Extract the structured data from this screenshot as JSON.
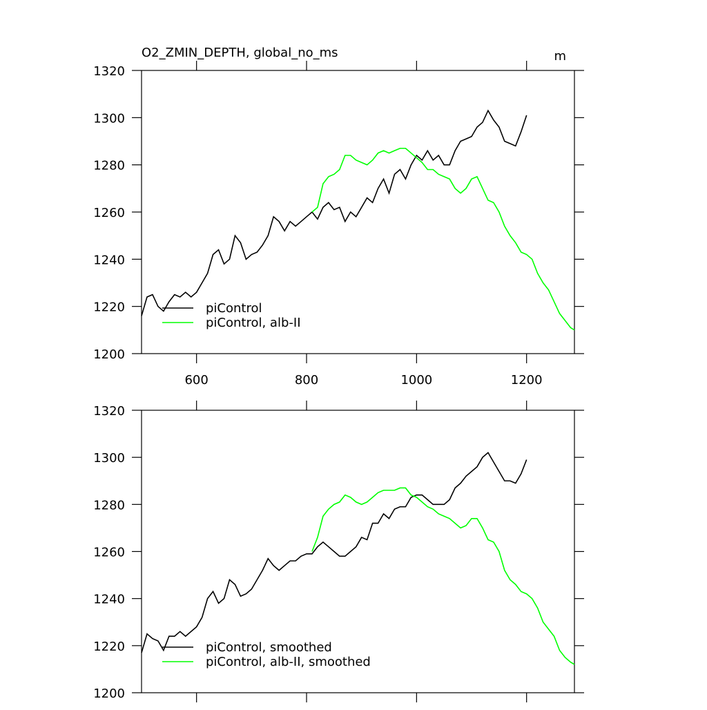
{
  "chart_data": [
    {
      "type": "line",
      "title": "O2_ZMIN_DEPTH, global_no_ms",
      "unit": "m",
      "xlim": [
        500,
        1287
      ],
      "xticks": [
        600,
        800,
        1000,
        1200
      ],
      "ylim": [
        1200,
        1320
      ],
      "yticks": [
        1200,
        1220,
        1240,
        1260,
        1280,
        1300,
        1320
      ],
      "legend": "lower left",
      "series": [
        {
          "name": "piControl",
          "color": "#000000",
          "x": [
            500,
            510,
            520,
            530,
            540,
            550,
            560,
            570,
            580,
            590,
            600,
            610,
            620,
            630,
            640,
            650,
            660,
            670,
            680,
            690,
            700,
            710,
            720,
            730,
            740,
            750,
            760,
            770,
            780,
            790,
            800,
            810,
            820,
            830,
            840,
            850,
            860,
            870,
            880,
            890,
            900,
            910,
            920,
            930,
            940,
            950,
            960,
            970,
            980,
            990,
            1000,
            1010,
            1020,
            1030,
            1040,
            1050,
            1060,
            1070,
            1080,
            1090,
            1100,
            1110,
            1120,
            1130,
            1140,
            1150,
            1160,
            1170,
            1180,
            1190,
            1200
          ],
          "values": [
            1216,
            1224,
            1225,
            1220,
            1218,
            1222,
            1225,
            1224,
            1226,
            1224,
            1226,
            1230,
            1234,
            1242,
            1244,
            1238,
            1240,
            1250,
            1247,
            1240,
            1242,
            1243,
            1246,
            1250,
            1258,
            1256,
            1252,
            1256,
            1254,
            1256,
            1258,
            1260,
            1257,
            1262,
            1264,
            1261,
            1262,
            1256,
            1260,
            1258,
            1262,
            1266,
            1264,
            1270,
            1274,
            1268,
            1276,
            1278,
            1274,
            1280,
            1284,
            1282,
            1286,
            1282,
            1284,
            1280,
            1280,
            1286,
            1290,
            1291,
            1292,
            1296,
            1298,
            1303,
            1299,
            1296,
            1290,
            1289,
            1288,
            1294,
            1301
          ]
        },
        {
          "name": "piControl, alb-II",
          "color": "#00ff00",
          "x": [
            810,
            820,
            830,
            840,
            850,
            860,
            870,
            880,
            890,
            900,
            910,
            920,
            930,
            940,
            950,
            960,
            970,
            980,
            990,
            1000,
            1010,
            1020,
            1030,
            1040,
            1050,
            1060,
            1070,
            1080,
            1090,
            1100,
            1110,
            1120,
            1130,
            1140,
            1150,
            1160,
            1170,
            1180,
            1190,
            1200,
            1210,
            1220,
            1230,
            1240,
            1250,
            1260,
            1270,
            1280,
            1287
          ],
          "values": [
            1260,
            1262,
            1272,
            1275,
            1276,
            1278,
            1284,
            1284,
            1282,
            1281,
            1280,
            1282,
            1285,
            1286,
            1285,
            1286,
            1287,
            1287,
            1285,
            1283,
            1281,
            1278,
            1278,
            1276,
            1275,
            1274,
            1270,
            1268,
            1270,
            1274,
            1275,
            1270,
            1265,
            1264,
            1260,
            1254,
            1250,
            1247,
            1243,
            1242,
            1240,
            1234,
            1230,
            1227,
            1222,
            1217,
            1214,
            1211,
            1210
          ]
        }
      ]
    },
    {
      "type": "line",
      "xlim": [
        500,
        1287
      ],
      "xticks": [
        600,
        800,
        1000,
        1200
      ],
      "ylim": [
        1200,
        1320
      ],
      "yticks": [
        1200,
        1220,
        1240,
        1260,
        1280,
        1300,
        1320
      ],
      "legend": "lower left",
      "series": [
        {
          "name": "piControl, smoothed",
          "color": "#000000",
          "x": [
            500,
            510,
            520,
            530,
            540,
            550,
            560,
            570,
            580,
            590,
            600,
            610,
            620,
            630,
            640,
            650,
            660,
            670,
            680,
            690,
            700,
            710,
            720,
            730,
            740,
            750,
            760,
            770,
            780,
            790,
            800,
            810,
            820,
            830,
            840,
            850,
            860,
            870,
            880,
            890,
            900,
            910,
            920,
            930,
            940,
            950,
            960,
            970,
            980,
            990,
            1000,
            1010,
            1020,
            1030,
            1040,
            1050,
            1060,
            1070,
            1080,
            1090,
            1100,
            1110,
            1120,
            1130,
            1140,
            1150,
            1160,
            1170,
            1180,
            1190,
            1200
          ],
          "values": [
            1217,
            1225,
            1223,
            1222,
            1218,
            1224,
            1224,
            1226,
            1224,
            1226,
            1228,
            1232,
            1240,
            1243,
            1238,
            1240,
            1248,
            1246,
            1241,
            1242,
            1244,
            1248,
            1252,
            1257,
            1254,
            1252,
            1254,
            1256,
            1256,
            1258,
            1259,
            1259,
            1262,
            1264,
            1262,
            1260,
            1258,
            1258,
            1260,
            1262,
            1266,
            1265,
            1272,
            1272,
            1276,
            1274,
            1278,
            1279,
            1279,
            1283,
            1284,
            1284,
            1282,
            1280,
            1280,
            1280,
            1282,
            1287,
            1289,
            1292,
            1294,
            1296,
            1300,
            1302,
            1298,
            1294,
            1290,
            1290,
            1289,
            1293,
            1299
          ]
        },
        {
          "name": "piControl, alb-II, smoothed",
          "color": "#00ff00",
          "x": [
            810,
            820,
            830,
            840,
            850,
            860,
            870,
            880,
            890,
            900,
            910,
            920,
            930,
            940,
            950,
            960,
            970,
            980,
            990,
            1000,
            1010,
            1020,
            1030,
            1040,
            1050,
            1060,
            1070,
            1080,
            1090,
            1100,
            1110,
            1120,
            1130,
            1140,
            1150,
            1160,
            1170,
            1180,
            1190,
            1200,
            1210,
            1220,
            1230,
            1240,
            1250,
            1260,
            1270,
            1280,
            1287
          ],
          "values": [
            1260,
            1266,
            1275,
            1278,
            1280,
            1281,
            1284,
            1283,
            1281,
            1280,
            1281,
            1283,
            1285,
            1286,
            1286,
            1286,
            1287,
            1287,
            1284,
            1283,
            1281,
            1279,
            1278,
            1276,
            1275,
            1274,
            1272,
            1270,
            1271,
            1274,
            1274,
            1270,
            1265,
            1264,
            1260,
            1252,
            1248,
            1246,
            1243,
            1242,
            1240,
            1236,
            1230,
            1227,
            1224,
            1218,
            1215,
            1213,
            1212
          ]
        }
      ]
    }
  ]
}
